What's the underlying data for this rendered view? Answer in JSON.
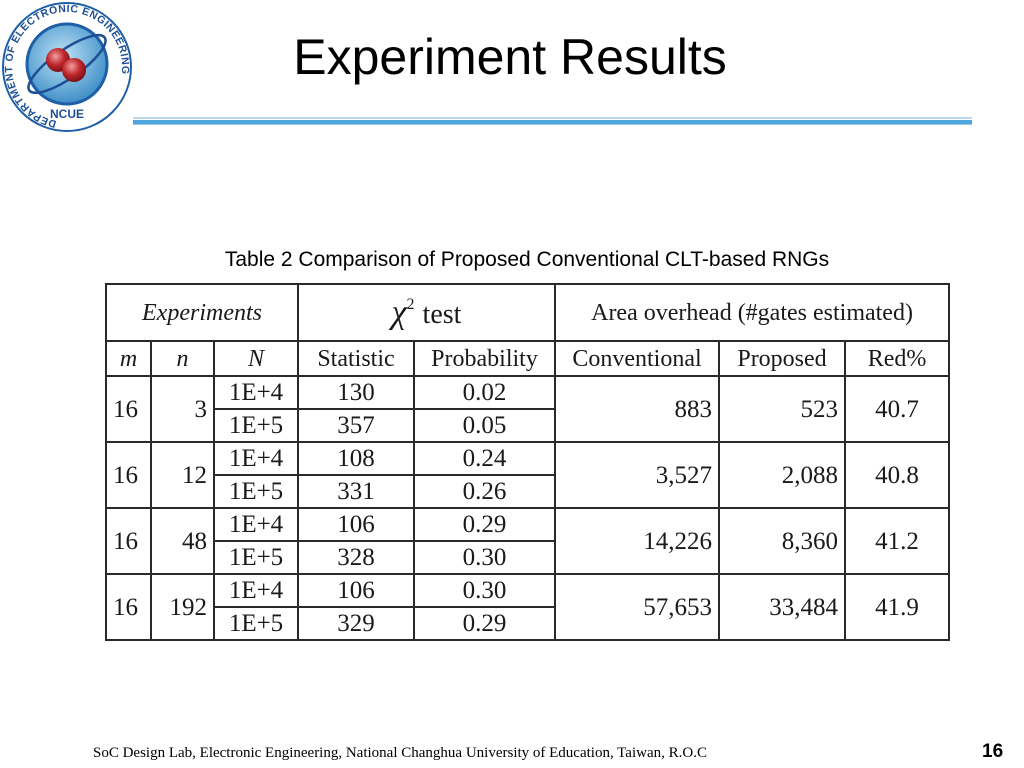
{
  "slide": {
    "title": "Experiment Results",
    "caption": "Table 2 Comparison of Proposed Conventional CLT-based RNGs",
    "footer": "SoC Design Lab, Electronic Engineering, National Changhua University of Education, Taiwan, R.O.C",
    "page_number": "16"
  },
  "logo": {
    "arc_text": "DEPARTMENT OF ELECTRONIC ENGINEERING",
    "name": "NCUE",
    "colors": {
      "ring": "#1e5fa8",
      "red": "#c0282e",
      "inner": "#7fc3e8"
    }
  },
  "table": {
    "group_headers": {
      "experiments": "Experiments",
      "chi_symbol": "χ",
      "chi_power": "2",
      "chi_test": "test",
      "area": "Area overhead (#gates estimated)"
    },
    "column_headers": {
      "m": "m",
      "n": "n",
      "N": "N",
      "statistic": "Statistic",
      "probability": "Probability",
      "conventional": "Conventional",
      "proposed": "Proposed",
      "red": "Red%"
    },
    "groups": [
      {
        "m": "16",
        "n": "3",
        "conventional": "883",
        "proposed": "523",
        "red": "40.7",
        "rows": [
          {
            "N": "1E+4",
            "statistic": "130",
            "probability": "0.02"
          },
          {
            "N": "1E+5",
            "statistic": "357",
            "probability": "0.05"
          }
        ]
      },
      {
        "m": "16",
        "n": "12",
        "conventional": "3,527",
        "proposed": "2,088",
        "red": "40.8",
        "rows": [
          {
            "N": "1E+4",
            "statistic": "108",
            "probability": "0.24"
          },
          {
            "N": "1E+5",
            "statistic": "331",
            "probability": "0.26"
          }
        ]
      },
      {
        "m": "16",
        "n": "48",
        "conventional": "14,226",
        "proposed": "8,360",
        "red": "41.2",
        "rows": [
          {
            "N": "1E+4",
            "statistic": "106",
            "probability": "0.29"
          },
          {
            "N": "1E+5",
            "statistic": "328",
            "probability": "0.30"
          }
        ]
      },
      {
        "m": "16",
        "n": "192",
        "conventional": "57,653",
        "proposed": "33,484",
        "red": "41.9",
        "rows": [
          {
            "N": "1E+4",
            "statistic": "106",
            "probability": "0.30"
          },
          {
            "N": "1E+5",
            "statistic": "329",
            "probability": "0.29"
          }
        ]
      }
    ]
  }
}
